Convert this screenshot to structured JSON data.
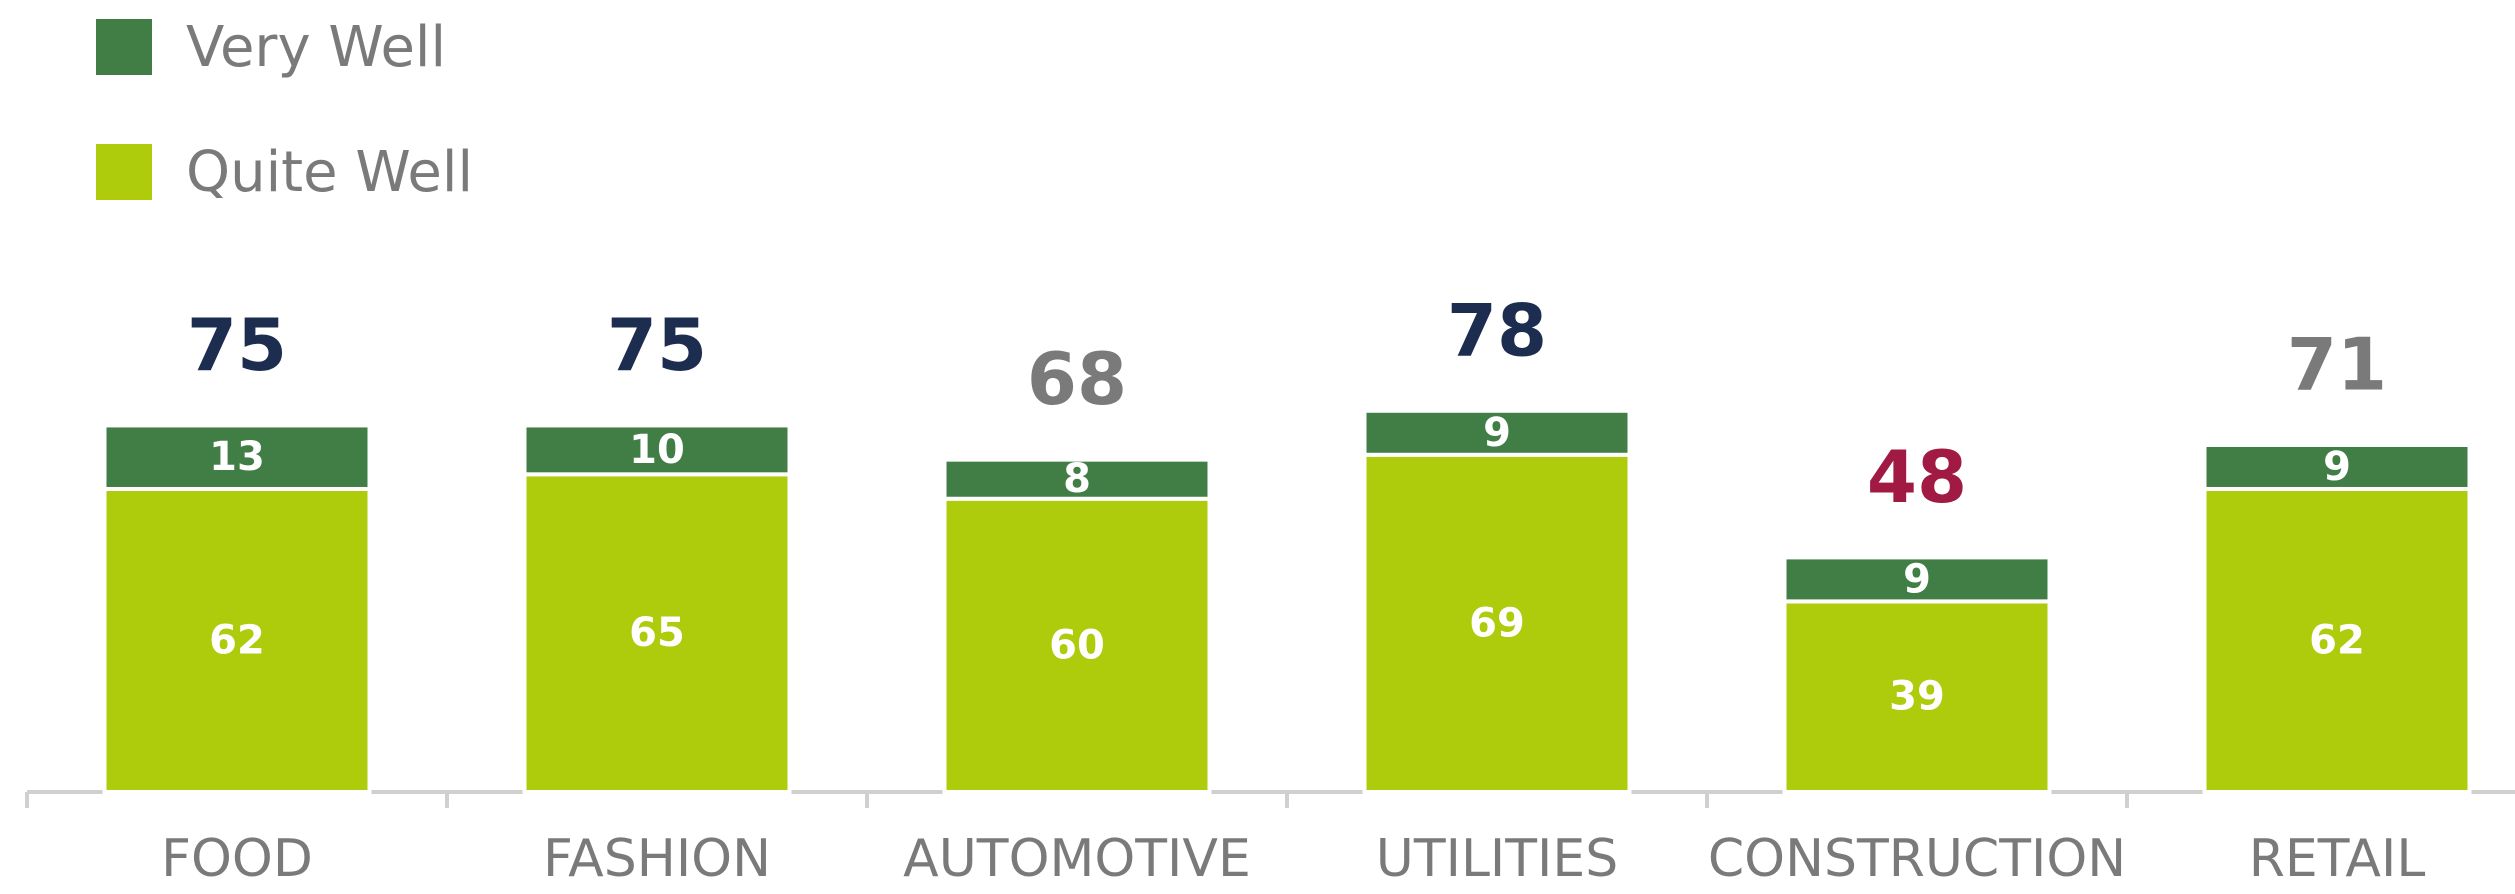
{
  "chart_data": {
    "type": "stacked_bar",
    "categories": [
      "FOOD",
      "FASHION",
      "AUTOMOTIVE",
      "UTILITIES",
      "CONSTRUCTION",
      "RETAIL"
    ],
    "series": [
      {
        "name": "Very Well",
        "color": "#417e45",
        "values": [
          13,
          10,
          8,
          9,
          9,
          9
        ]
      },
      {
        "name": "Quite Well",
        "color": "#aecb0c",
        "values": [
          62,
          65,
          60,
          69,
          39,
          62
        ]
      }
    ],
    "totals": [
      75,
      75,
      68,
      78,
      48,
      71
    ],
    "total_colors": [
      "#1d2d50",
      "#1d2d50",
      "#7a7a7a",
      "#1d2d50",
      "#a01a44",
      "#7a7a7a"
    ],
    "ylim": [
      0,
      80
    ]
  }
}
